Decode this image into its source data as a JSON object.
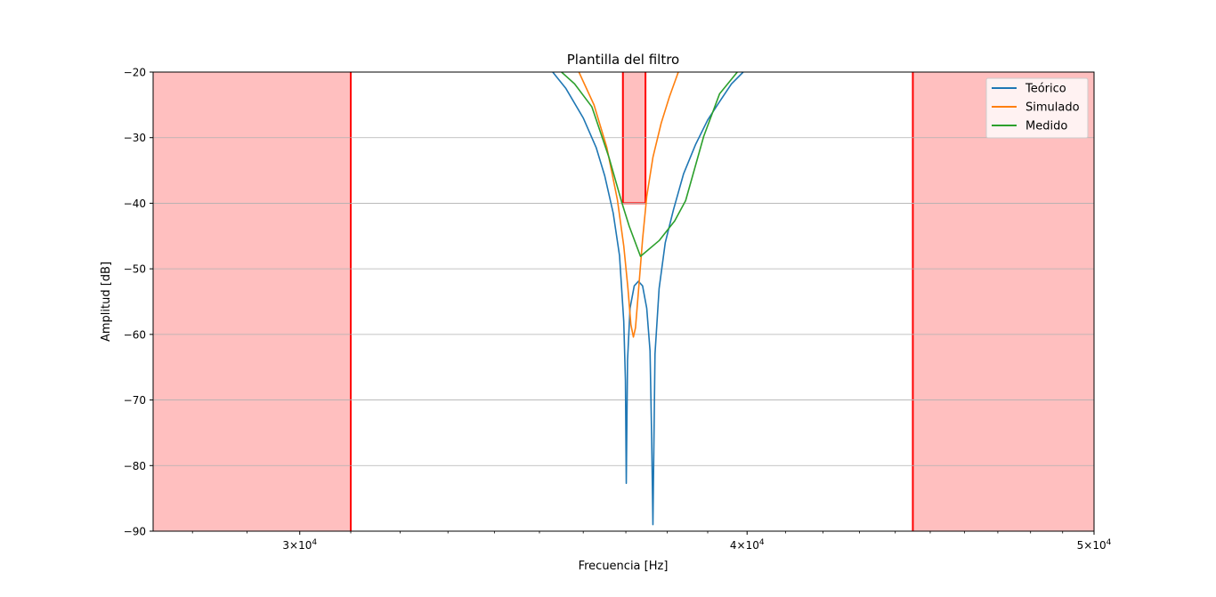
{
  "chart_data": {
    "type": "line",
    "title": "Plantilla del filtro",
    "xlabel": "Frecuencia [Hz]",
    "ylabel": "Amplitud [dB]",
    "xscale": "log",
    "xlim": [
      27300,
      50000
    ],
    "ylim": [
      -90,
      -20
    ],
    "yticks": [
      -20,
      -30,
      -40,
      -50,
      -60,
      -70,
      -80,
      -90
    ],
    "ytick_labels": [
      "−20",
      "−30",
      "−40",
      "−50",
      "−60",
      "−70",
      "−80",
      "−90"
    ],
    "xticks": [
      30000,
      40000,
      50000
    ],
    "xtick_labels": [
      {
        "base": "3×10",
        "exp": "4"
      },
      {
        "base": "4×10",
        "exp": "4"
      },
      {
        "base": "5×10",
        "exp": "4"
      }
    ],
    "grid": "y",
    "legend": "top-right",
    "template": {
      "color": "#ff0000",
      "fill": "#ffbfbf",
      "stop_bands": [
        {
          "from": 27300,
          "to": 31000
        },
        {
          "from": 44500,
          "to": 50000
        }
      ],
      "pass_band": {
        "from": 36930,
        "to": 37470,
        "level": -40
      }
    },
    "series": [
      {
        "name": "Teórico",
        "color": "#1f77b4",
        "points": [
          [
            35300,
            -20
          ],
          [
            35600,
            -22.5
          ],
          [
            36000,
            -27
          ],
          [
            36300,
            -31.5
          ],
          [
            36500,
            -35.8
          ],
          [
            36700,
            -41.5
          ],
          [
            36850,
            -48
          ],
          [
            36950,
            -58
          ],
          [
            36990,
            -67
          ],
          [
            37010,
            -82.7
          ],
          [
            37040,
            -64
          ],
          [
            37100,
            -56
          ],
          [
            37200,
            -52.6
          ],
          [
            37300,
            -51.9
          ],
          [
            37400,
            -52.6
          ],
          [
            37500,
            -56
          ],
          [
            37580,
            -62.5
          ],
          [
            37620,
            -76
          ],
          [
            37650,
            -89
          ],
          [
            37700,
            -63
          ],
          [
            37800,
            -53
          ],
          [
            37950,
            -46
          ],
          [
            38150,
            -41
          ],
          [
            38400,
            -35.5
          ],
          [
            38700,
            -31
          ],
          [
            39000,
            -27.3
          ],
          [
            39300,
            -24.5
          ],
          [
            39600,
            -21.8
          ],
          [
            39900,
            -20
          ]
        ]
      },
      {
        "name": "Simulado",
        "color": "#ff7f0e",
        "points": [
          [
            35900,
            -20
          ],
          [
            36250,
            -25
          ],
          [
            36550,
            -31.5
          ],
          [
            36800,
            -39.5
          ],
          [
            36950,
            -46.5
          ],
          [
            37050,
            -53
          ],
          [
            37120,
            -58.5
          ],
          [
            37180,
            -60.4
          ],
          [
            37230,
            -59
          ],
          [
            37300,
            -53.5
          ],
          [
            37400,
            -45.5
          ],
          [
            37500,
            -39
          ],
          [
            37650,
            -33
          ],
          [
            37850,
            -27.8
          ],
          [
            38050,
            -23.8
          ],
          [
            38270,
            -20
          ]
        ]
      },
      {
        "name": "Medido",
        "color": "#2ca02c",
        "points": [
          [
            35500,
            -20
          ],
          [
            35800,
            -21.8
          ],
          [
            36200,
            -25.3
          ],
          [
            36600,
            -33
          ],
          [
            36900,
            -39.8
          ],
          [
            37080,
            -43.5
          ],
          [
            37350,
            -48.1
          ],
          [
            37800,
            -45.7
          ],
          [
            38180,
            -42.7
          ],
          [
            38450,
            -39.6
          ],
          [
            38900,
            -29.8
          ],
          [
            39300,
            -23.3
          ],
          [
            39750,
            -20
          ]
        ]
      }
    ]
  }
}
